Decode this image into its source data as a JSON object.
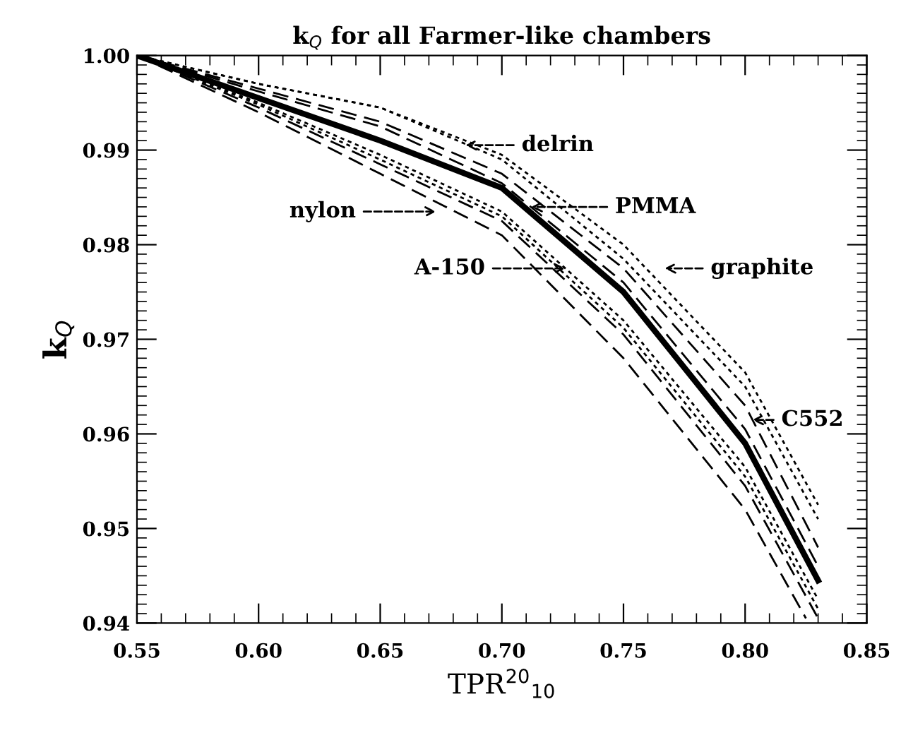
{
  "chart_data": {
    "type": "line",
    "title": "k$_{Q}$ for all Farmer-like chambers",
    "xlabel": "TPR$^{20}$$_{10}$",
    "ylabel": "k$_{Q}$",
    "xlim": [
      0.55,
      0.85
    ],
    "ylim": [
      0.94,
      1.0
    ],
    "xticks": [
      {
        "value": 0.55,
        "label": "0.55"
      },
      {
        "value": 0.6,
        "label": "0.60"
      },
      {
        "value": 0.65,
        "label": "0.65"
      },
      {
        "value": 0.7,
        "label": "0.70"
      },
      {
        "value": 0.75,
        "label": "0.75"
      },
      {
        "value": 0.8,
        "label": "0.80"
      },
      {
        "value": 0.85,
        "label": "0.85"
      }
    ],
    "yticks": [
      {
        "value": 0.94,
        "label": "0.94"
      },
      {
        "value": 0.95,
        "label": "0.95"
      },
      {
        "value": 0.96,
        "label": "0.96"
      },
      {
        "value": 0.97,
        "label": "0.97"
      },
      {
        "value": 0.98,
        "label": "0.98"
      },
      {
        "value": 0.99,
        "label": "0.99"
      },
      {
        "value": 1.0,
        "label": "1.00"
      }
    ],
    "grid": false,
    "legend": false,
    "marker": "none",
    "x": [
      0.55,
      0.6,
      0.65,
      0.7,
      0.75,
      0.8,
      0.83
    ],
    "series": [
      {
        "color": "#000000",
        "line_style": "dotted",
        "values": [
          1.0,
          0.997,
          0.9945,
          0.9895,
          0.98,
          0.9665,
          0.9525
        ]
      },
      {
        "color": "#000000",
        "line_style": "dotted",
        "values": [
          1.0,
          0.997,
          0.9945,
          0.989,
          0.9785,
          0.965,
          0.951
        ]
      },
      {
        "color": "#000000",
        "line_style": "dashed",
        "values": [
          1.0,
          0.9965,
          0.993,
          0.9875,
          0.9775,
          0.963,
          0.948
        ]
      },
      {
        "color": "#000000",
        "line_style": "dashed",
        "values": [
          1.0,
          0.9962,
          0.9925,
          0.9865,
          0.976,
          0.9605,
          0.946
        ]
      },
      {
        "color": "#000000",
        "line_style": "solid",
        "values": [
          1.0,
          0.9955,
          0.991,
          0.986,
          0.975,
          0.959,
          0.9445
        ]
      },
      {
        "color": "#000000",
        "line_style": "dotted",
        "values": [
          1.0,
          0.995,
          0.9895,
          0.9835,
          0.972,
          0.9565,
          0.9425
        ]
      },
      {
        "color": "#000000",
        "line_style": "dotted",
        "values": [
          1.0,
          0.9948,
          0.989,
          0.983,
          0.9712,
          0.9555,
          0.9415
        ]
      },
      {
        "color": "#000000",
        "line_style": "dashed",
        "values": [
          1.0,
          0.9945,
          0.9885,
          0.9825,
          0.9705,
          0.9545,
          0.9405
        ]
      },
      {
        "color": "#000000",
        "line_style": "dashed",
        "x": [
          0.55,
          0.6,
          0.65,
          0.7,
          0.75,
          0.8,
          0.825
        ],
        "values": [
          1.0,
          0.994,
          0.9875,
          0.981,
          0.968,
          0.952,
          0.9405
        ]
      }
    ],
    "annotations": [
      "delrin",
      "nylon",
      "PMMA",
      "A-150",
      "graphite",
      "C552"
    ]
  }
}
